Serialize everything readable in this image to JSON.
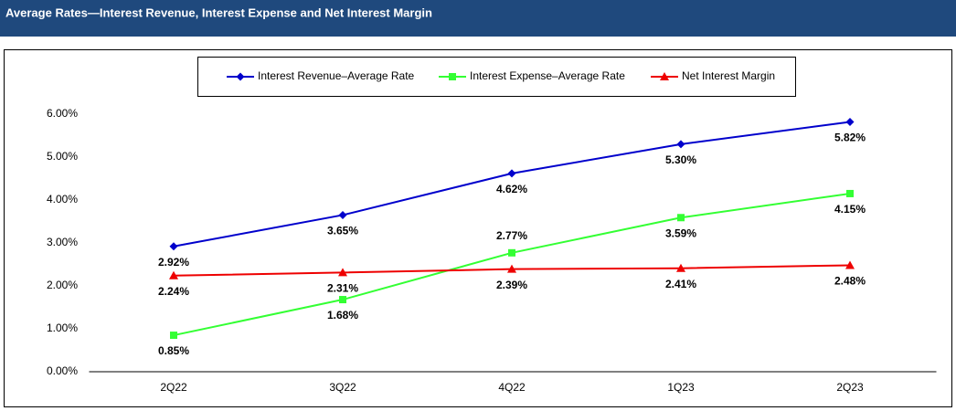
{
  "chart_data": {
    "type": "line",
    "title": "Average Rates—Interest Revenue, Interest Expense and Net Interest Margin",
    "categories": [
      "2Q22",
      "3Q22",
      "4Q22",
      "1Q23",
      "2Q23"
    ],
    "series": [
      {
        "name": "Interest Revenue–Average Rate",
        "color": "#0000cc",
        "marker": "diamond",
        "values": [
          2.92,
          3.65,
          4.62,
          5.3,
          5.82
        ],
        "value_labels": [
          "2.92%",
          "3.65%",
          "4.62%",
          "5.30%",
          "5.82%"
        ]
      },
      {
        "name": "Interest Expense–Average Rate",
        "color": "#33ff33",
        "marker": "square",
        "values": [
          0.85,
          1.68,
          2.77,
          3.59,
          4.15
        ],
        "value_labels": [
          "0.85%",
          "1.68%",
          "2.77%",
          "3.59%",
          "4.15%"
        ]
      },
      {
        "name": "Net Interest Margin",
        "color": "#ee0000",
        "marker": "triangle",
        "values": [
          2.24,
          2.31,
          2.39,
          2.41,
          2.48
        ],
        "value_labels": [
          "2.24%",
          "2.31%",
          "2.39%",
          "2.41%",
          "2.48%"
        ]
      }
    ],
    "ylim": [
      0,
      6
    ],
    "yticks": [
      {
        "value": 0,
        "label": "0.00%"
      },
      {
        "value": 1,
        "label": "1.00%"
      },
      {
        "value": 2,
        "label": "2.00%"
      },
      {
        "value": 3,
        "label": "3.00%"
      },
      {
        "value": 4,
        "label": "4.00%"
      },
      {
        "value": 5,
        "label": "5.00%"
      },
      {
        "value": 6,
        "label": "6.00%"
      }
    ],
    "grid": false,
    "legend": "top"
  }
}
